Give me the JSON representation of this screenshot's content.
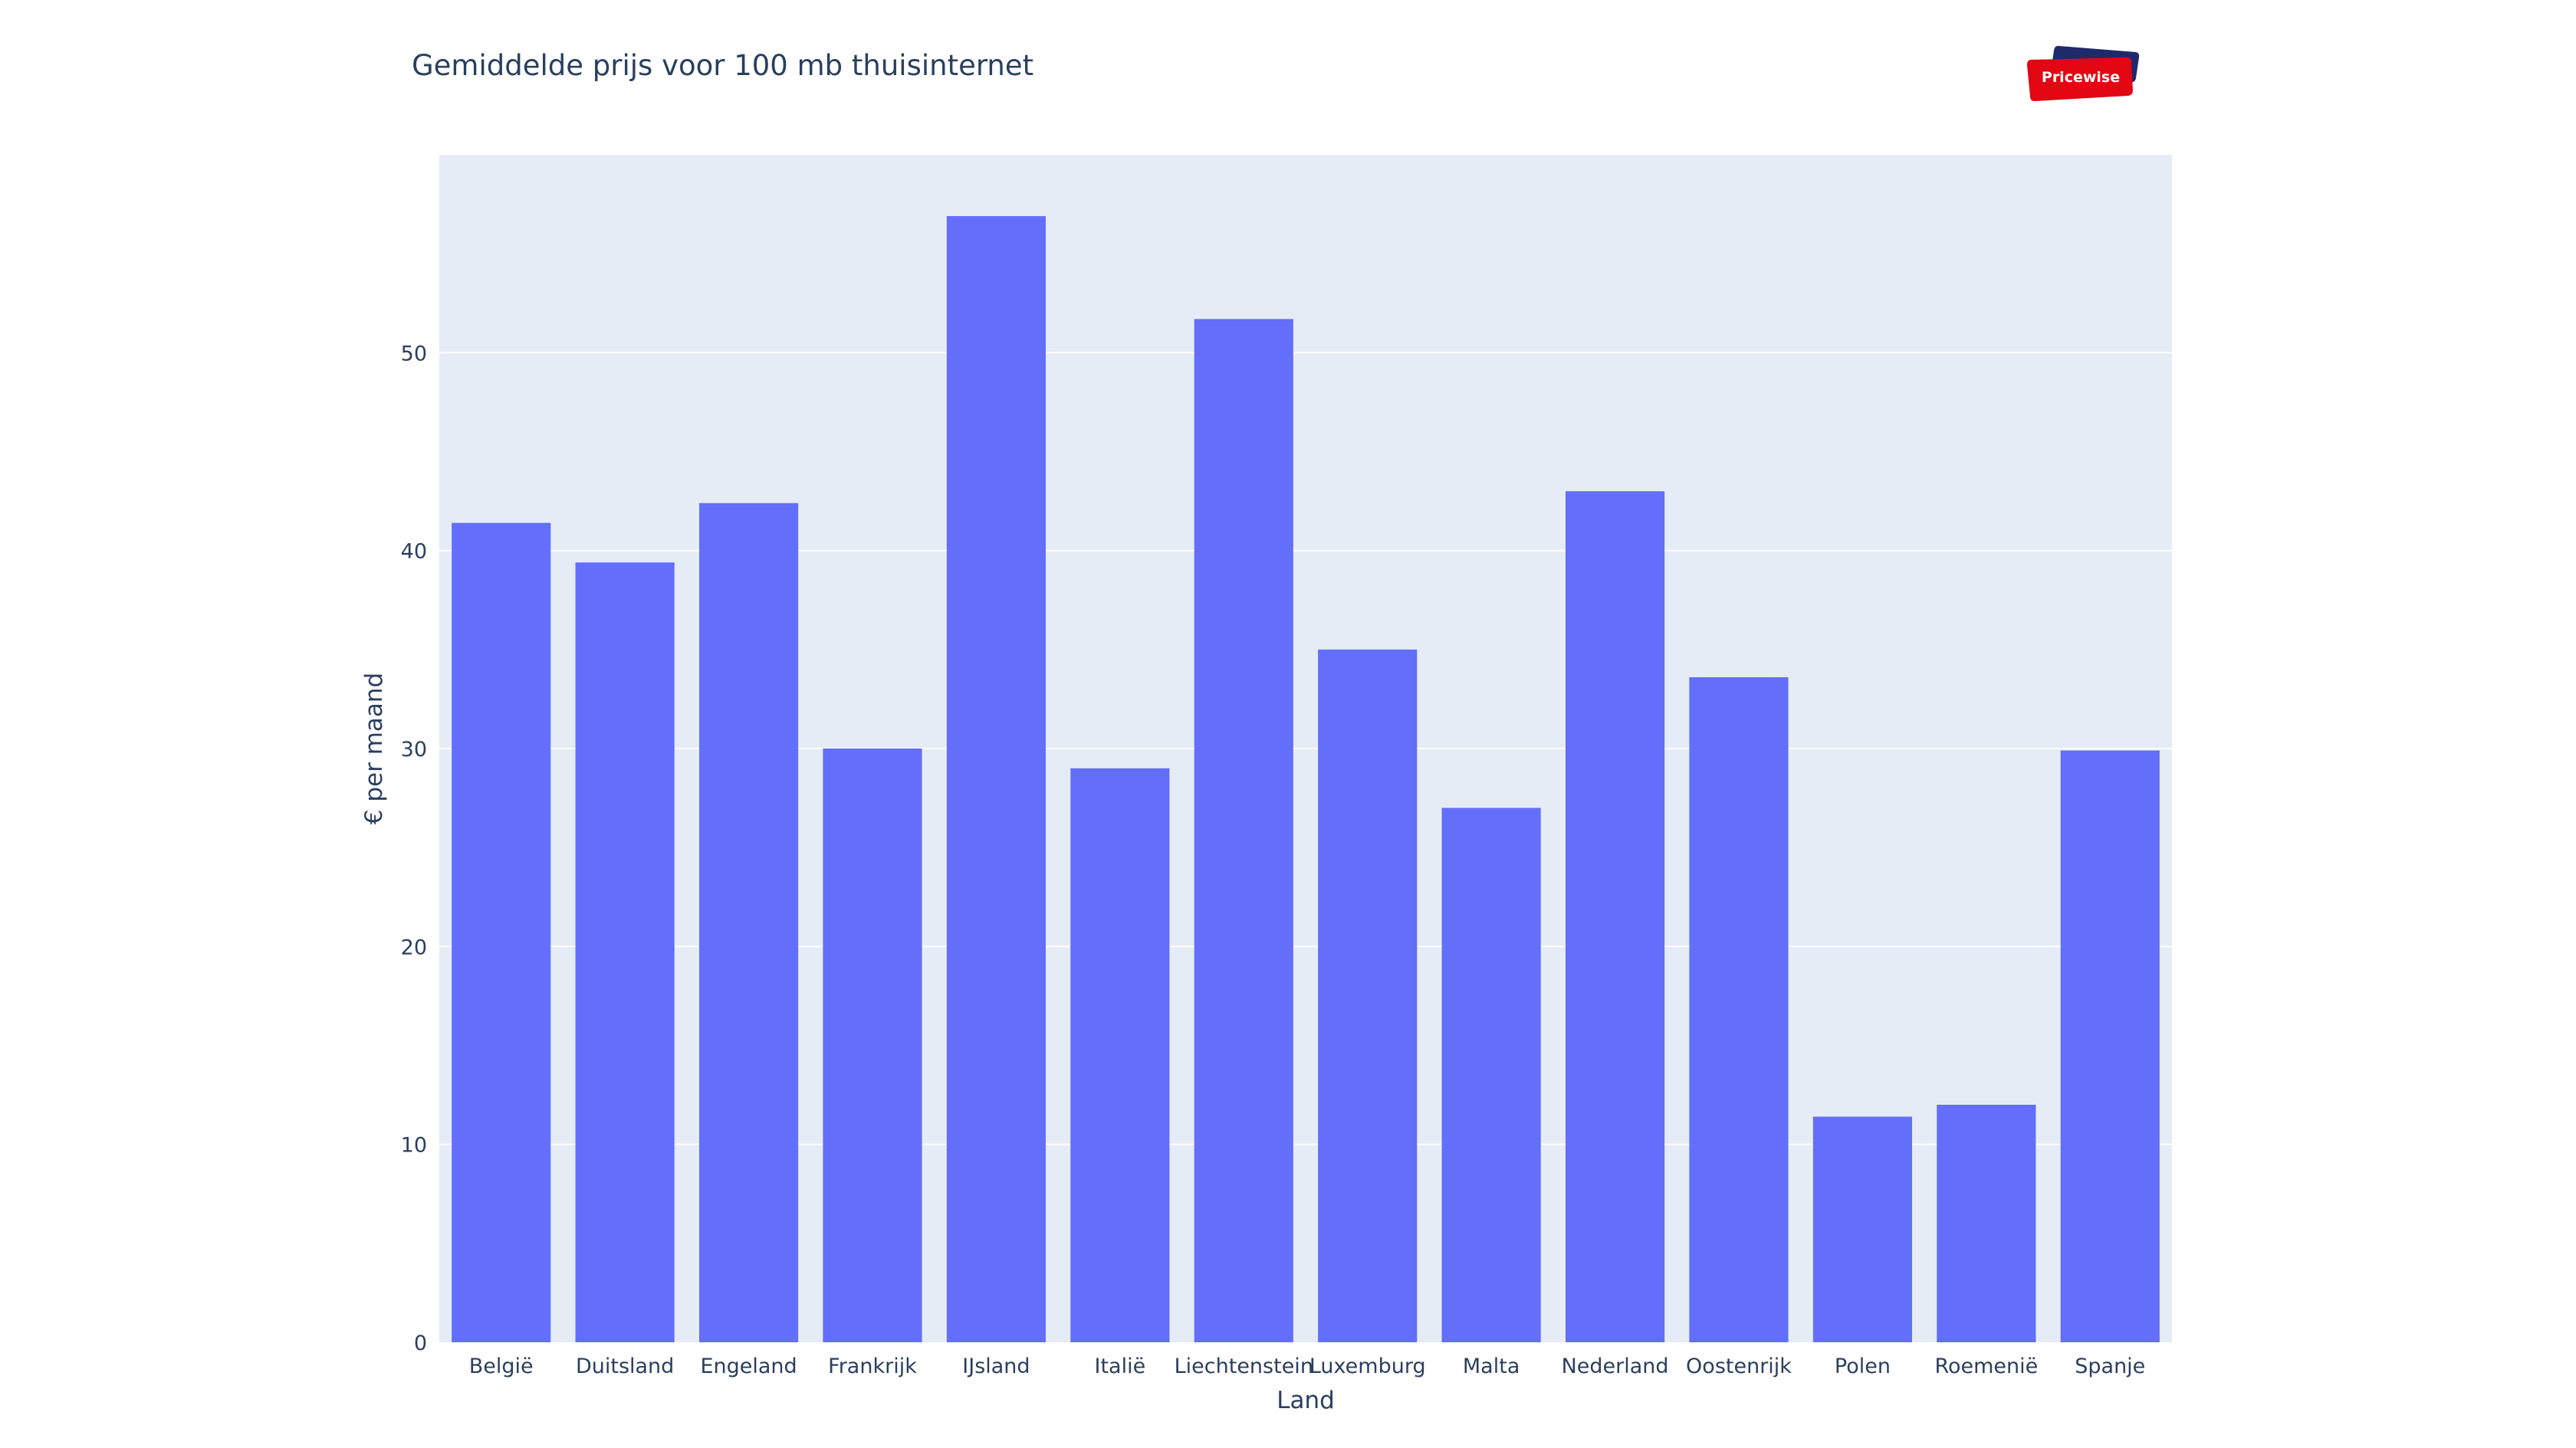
{
  "colors": {
    "plot_background": "#e5ecf6",
    "bar": "#636efa",
    "grid": "#ffffff",
    "text": "#2a3f5f",
    "logo_red": "#e30613",
    "logo_navy": "#1f2a6b"
  },
  "logo": {
    "text": "Pricewise"
  },
  "chart_data": {
    "type": "bar",
    "title": "Gemiddelde prijs voor 100 mb thuisinternet",
    "xlabel": "Land",
    "ylabel": "€ per maand",
    "ylim": [
      0,
      60
    ],
    "yticks": [
      0,
      10,
      20,
      30,
      40,
      50
    ],
    "grid": true,
    "categories": [
      "België",
      "Duitsland",
      "Engeland",
      "Frankrijk",
      "IJsland",
      "Italië",
      "Liechtenstein",
      "Luxemburg",
      "Malta",
      "Nederland",
      "Oostenrijk",
      "Polen",
      "Roemenië",
      "Spanje"
    ],
    "values": [
      41.4,
      39.4,
      42.4,
      30.0,
      56.9,
      29.0,
      51.7,
      35.0,
      27.0,
      43.0,
      33.6,
      11.4,
      12.0,
      29.9
    ]
  }
}
